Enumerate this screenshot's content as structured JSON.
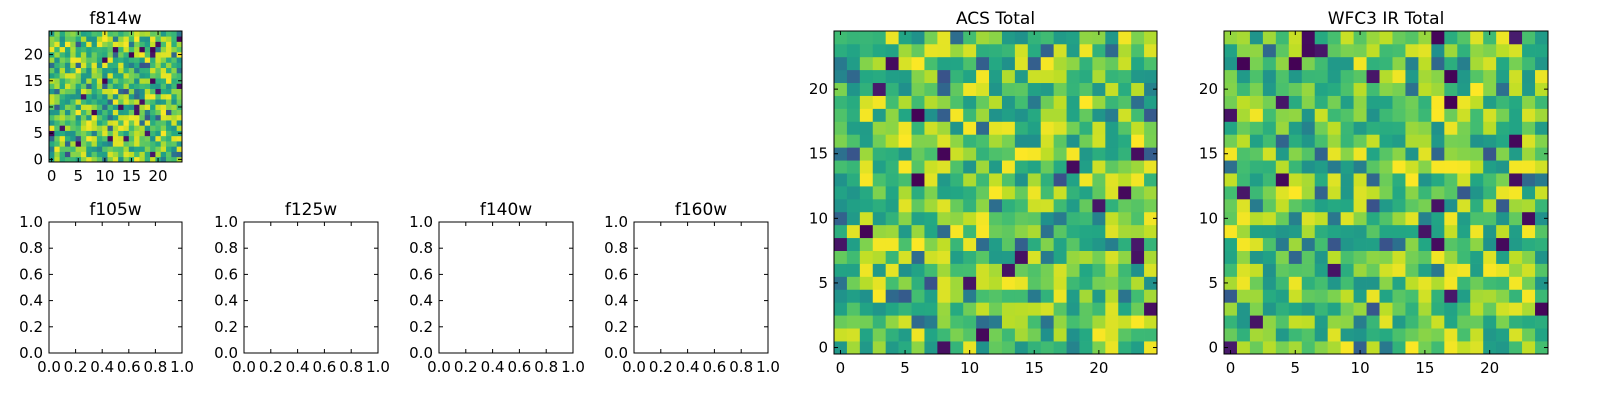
{
  "figure": {
    "background": "#ffffff",
    "axis_color": "#000000"
  },
  "colormap": "viridis",
  "chart_data": [
    {
      "id": "f814w",
      "type": "heatmap",
      "title": "f814w",
      "grid_size": [
        25,
        25
      ],
      "xlim": [
        -0.5,
        24.5
      ],
      "ylim": [
        -0.5,
        24.5
      ],
      "xticks": [
        0,
        5,
        10,
        15,
        20
      ],
      "yticks": [
        0,
        5,
        10,
        15,
        20
      ],
      "color_range": [
        0,
        1
      ],
      "values_seed": 814,
      "note_values": "25x25 noise field"
    },
    {
      "id": "f105w",
      "type": "empty",
      "title": "f105w",
      "xlim": [
        0,
        1
      ],
      "ylim": [
        0,
        1
      ],
      "xticks": [
        "0.0",
        "0.2",
        "0.4",
        "0.6",
        "0.8",
        "1.0"
      ],
      "yticks": [
        "0.0",
        "0.2",
        "0.4",
        "0.6",
        "0.8",
        "1.0"
      ]
    },
    {
      "id": "f125w",
      "type": "empty",
      "title": "f125w",
      "xlim": [
        0,
        1
      ],
      "ylim": [
        0,
        1
      ],
      "xticks": [
        "0.0",
        "0.2",
        "0.4",
        "0.6",
        "0.8",
        "1.0"
      ],
      "yticks": [
        "0.0",
        "0.2",
        "0.4",
        "0.6",
        "0.8",
        "1.0"
      ]
    },
    {
      "id": "f140w",
      "type": "empty",
      "title": "f140w",
      "xlim": [
        0,
        1
      ],
      "ylim": [
        0,
        1
      ],
      "xticks": [
        "0.0",
        "0.2",
        "0.4",
        "0.6",
        "0.8",
        "1.0"
      ],
      "yticks": [
        "0.0",
        "0.2",
        "0.4",
        "0.6",
        "0.8",
        "1.0"
      ]
    },
    {
      "id": "f160w",
      "type": "empty",
      "title": "f160w",
      "xlim": [
        0,
        1
      ],
      "ylim": [
        0,
        1
      ],
      "xticks": [
        "0.0",
        "0.2",
        "0.4",
        "0.6",
        "0.8",
        "1.0"
      ],
      "yticks": [
        "0.0",
        "0.2",
        "0.4",
        "0.6",
        "0.8",
        "1.0"
      ]
    },
    {
      "id": "acs_total",
      "type": "heatmap",
      "title": "ACS Total",
      "grid_size": [
        25,
        25
      ],
      "xlim": [
        -0.5,
        24.5
      ],
      "ylim": [
        -0.5,
        24.5
      ],
      "xticks": [
        0,
        5,
        10,
        15,
        20
      ],
      "yticks": [
        0,
        5,
        10,
        15,
        20
      ],
      "color_range": [
        0,
        1
      ],
      "values_seed": 1001
    },
    {
      "id": "wfc3_ir_total",
      "type": "heatmap",
      "title": "WFC3 IR Total",
      "grid_size": [
        25,
        25
      ],
      "xlim": [
        -0.5,
        24.5
      ],
      "ylim": [
        -0.5,
        24.5
      ],
      "xticks": [
        0,
        5,
        10,
        15,
        20
      ],
      "yticks": [
        0,
        5,
        10,
        15,
        20
      ],
      "color_range": [
        0,
        1
      ],
      "values_seed": 2002
    }
  ]
}
